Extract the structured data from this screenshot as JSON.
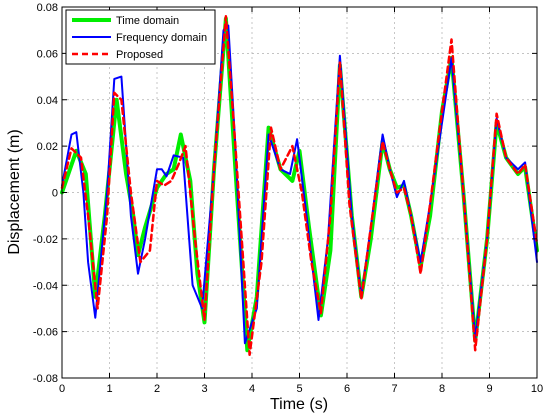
{
  "chart_data": {
    "type": "line",
    "title": "",
    "xlabel": "Time (s)",
    "ylabel": "Displacement (m)",
    "xlim": [
      0,
      10
    ],
    "ylim": [
      -0.08,
      0.08
    ],
    "xticks": [
      0,
      1,
      2,
      3,
      4,
      5,
      6,
      7,
      8,
      9,
      10
    ],
    "yticks": [
      -0.08,
      -0.06,
      -0.04,
      -0.02,
      0,
      0.02,
      0.04,
      0.06,
      0.08
    ],
    "xtick_labels": [
      "0",
      "1",
      "2",
      "3",
      "4",
      "5",
      "6",
      "7",
      "8",
      "9",
      "10"
    ],
    "ytick_labels": [
      "-0.08",
      "-0.06",
      "-0.04",
      "-0.02",
      "0",
      "0.02",
      "0.04",
      "0.06",
      "0.08"
    ],
    "grid": true,
    "legend_position": "top-left",
    "series": [
      {
        "name": "Time domain",
        "color": "#00ee00",
        "style": "solid",
        "x": [
          0,
          0.3,
          0.5,
          0.7,
          0.9,
          1.15,
          1.35,
          1.5,
          1.6,
          1.75,
          2.0,
          2.2,
          2.35,
          2.5,
          2.7,
          2.85,
          3.0,
          3.2,
          3.45,
          3.65,
          3.9,
          4.1,
          4.35,
          4.6,
          4.85,
          5.0,
          5.2,
          5.45,
          5.65,
          5.85,
          6.1,
          6.3,
          6.5,
          6.75,
          6.9,
          7.05,
          7.2,
          7.35,
          7.55,
          7.75,
          8.0,
          8.2,
          8.45,
          8.7,
          8.95,
          9.15,
          9.35,
          9.6,
          9.75,
          10.0
        ],
        "y": [
          0.0,
          0.018,
          0.008,
          -0.045,
          -0.01,
          0.04,
          0.008,
          -0.01,
          -0.027,
          -0.015,
          0.002,
          0.008,
          0.01,
          0.025,
          0.005,
          -0.035,
          -0.056,
          0.01,
          0.075,
          0.01,
          -0.068,
          -0.045,
          0.028,
          0.01,
          0.005,
          0.018,
          -0.015,
          -0.053,
          -0.025,
          0.055,
          -0.01,
          -0.045,
          -0.02,
          0.022,
          0.01,
          0.002,
          0.003,
          -0.01,
          -0.032,
          -0.01,
          0.035,
          0.058,
          0.0,
          -0.064,
          -0.02,
          0.03,
          0.015,
          0.008,
          0.011,
          -0.025
        ]
      },
      {
        "name": "Frequency domain",
        "color": "#0000ff",
        "style": "solid",
        "x": [
          0,
          0.2,
          0.3,
          0.45,
          0.55,
          0.7,
          0.95,
          1.1,
          1.25,
          1.45,
          1.6,
          1.75,
          2.0,
          2.1,
          2.2,
          2.35,
          2.55,
          2.75,
          2.95,
          3.2,
          3.4,
          3.5,
          3.65,
          3.85,
          4.1,
          4.35,
          4.6,
          4.8,
          4.95,
          5.15,
          5.4,
          5.6,
          5.85,
          6.1,
          6.3,
          6.5,
          6.75,
          6.9,
          7.05,
          7.2,
          7.35,
          7.55,
          7.75,
          8.0,
          8.2,
          8.45,
          8.7,
          8.95,
          9.15,
          9.35,
          9.6,
          9.75,
          10.0
        ],
        "y": [
          0.003,
          0.025,
          0.026,
          0.0,
          -0.03,
          -0.054,
          0.0,
          0.049,
          0.05,
          -0.01,
          -0.035,
          -0.02,
          0.01,
          0.01,
          0.007,
          0.016,
          0.015,
          -0.04,
          -0.05,
          0.01,
          0.07,
          0.072,
          0.02,
          -0.065,
          -0.05,
          0.025,
          0.01,
          0.008,
          0.023,
          -0.01,
          -0.055,
          -0.02,
          0.059,
          -0.01,
          -0.045,
          -0.015,
          0.025,
          0.01,
          -0.002,
          0.005,
          -0.01,
          -0.03,
          -0.005,
          0.03,
          0.058,
          0.0,
          -0.063,
          -0.02,
          0.032,
          0.015,
          0.01,
          0.013,
          -0.03
        ]
      },
      {
        "name": "Proposed",
        "color": "#ff0000",
        "style": "dashed",
        "x": [
          0,
          0.2,
          0.4,
          0.55,
          0.75,
          0.95,
          1.1,
          1.25,
          1.45,
          1.65,
          1.85,
          2.0,
          2.15,
          2.3,
          2.45,
          2.6,
          2.8,
          3.0,
          3.2,
          3.45,
          3.65,
          3.95,
          4.2,
          4.4,
          4.6,
          4.85,
          5.05,
          5.25,
          5.45,
          5.65,
          5.85,
          6.05,
          6.3,
          6.5,
          6.75,
          6.9,
          7.05,
          7.2,
          7.35,
          7.55,
          7.75,
          8.0,
          8.2,
          8.45,
          8.7,
          8.95,
          9.15,
          9.35,
          9.6,
          9.75,
          10.0
        ],
        "y": [
          0.002,
          0.019,
          0.015,
          -0.01,
          -0.05,
          -0.01,
          0.043,
          0.04,
          0.0,
          -0.03,
          -0.025,
          0.005,
          0.003,
          0.005,
          0.012,
          0.02,
          -0.02,
          -0.055,
          0.01,
          0.076,
          0.02,
          -0.07,
          -0.03,
          0.028,
          0.01,
          0.02,
          0.0,
          -0.03,
          -0.052,
          -0.01,
          0.056,
          -0.005,
          -0.046,
          -0.015,
          0.022,
          0.01,
          0.0,
          0.002,
          -0.01,
          -0.035,
          -0.005,
          0.035,
          0.066,
          0.0,
          -0.068,
          -0.02,
          0.034,
          0.015,
          0.008,
          0.012,
          -0.022
        ]
      }
    ]
  }
}
